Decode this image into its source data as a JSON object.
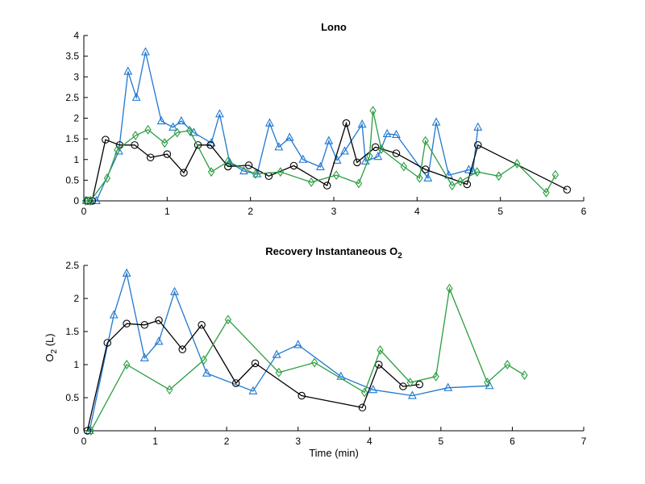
{
  "chart_data": [
    {
      "type": "line",
      "title": "Lono",
      "title_sub": "",
      "xlabel": "",
      "ylabel": "",
      "xlim": [
        0,
        6
      ],
      "ylim": [
        0,
        4
      ],
      "xticks": [
        0,
        1,
        2,
        3,
        4,
        5,
        6
      ],
      "yticks": [
        0,
        0.5,
        1,
        1.5,
        2,
        2.5,
        3,
        3.5,
        4
      ],
      "xtick_labels": [
        "0",
        "1",
        "2",
        "3",
        "4",
        "5",
        "6"
      ],
      "ytick_labels": [
        "0",
        "0.5",
        "1",
        "1.5",
        "2",
        "2.5",
        "3",
        "3.5",
        "4"
      ],
      "grid": false,
      "series": [
        {
          "marker": "triangle",
          "color": "#1f77d0",
          "x": [
            0.03,
            0.08,
            0.15,
            0.42,
            0.53,
            0.63,
            0.74,
            0.93,
            1.07,
            1.17,
            1.32,
            1.53,
            1.63,
            1.75,
            1.92,
            2.08,
            2.23,
            2.34,
            2.47,
            2.63,
            2.84,
            2.94,
            3.04,
            3.13,
            3.34,
            3.38,
            3.53,
            3.64,
            3.75,
            4.13,
            4.23,
            4.38,
            4.62,
            4.67,
            4.73
          ],
          "y": [
            0.0,
            0.0,
            0.0,
            1.2,
            3.13,
            2.5,
            3.6,
            1.93,
            1.78,
            1.93,
            1.65,
            1.4,
            2.1,
            0.93,
            0.72,
            0.65,
            1.88,
            1.3,
            1.53,
            1.0,
            0.82,
            1.45,
            0.98,
            1.2,
            1.85,
            0.96,
            1.07,
            1.62,
            1.6,
            0.55,
            1.9,
            0.62,
            0.75,
            0.72,
            1.78
          ]
        },
        {
          "marker": "circle",
          "color": "#000000",
          "x": [
            0.05,
            0.1,
            0.26,
            0.43,
            0.61,
            0.8,
            1.0,
            1.2,
            1.37,
            1.52,
            1.73,
            1.98,
            2.22,
            2.52,
            2.92,
            3.15,
            3.28,
            3.5,
            3.75,
            4.1,
            4.6,
            4.73,
            5.8
          ],
          "y": [
            0.0,
            0.0,
            1.48,
            1.35,
            1.35,
            1.05,
            1.13,
            0.68,
            1.35,
            1.35,
            0.83,
            0.86,
            0.6,
            0.85,
            0.37,
            1.88,
            0.93,
            1.3,
            1.15,
            0.76,
            0.4,
            1.35,
            0.27
          ]
        },
        {
          "marker": "diamond",
          "color": "#2a9d3f",
          "x": [
            0.02,
            0.08,
            0.28,
            0.4,
            0.62,
            0.77,
            0.97,
            1.12,
            1.27,
            1.53,
            1.73,
            2.06,
            2.36,
            2.73,
            3.03,
            3.3,
            3.43,
            3.47,
            3.57,
            3.84,
            4.03,
            4.1,
            4.42,
            4.52,
            4.72,
            4.98,
            5.2,
            5.55,
            5.66
          ],
          "y": [
            0.0,
            0.0,
            0.55,
            1.23,
            1.58,
            1.72,
            1.4,
            1.65,
            1.7,
            0.7,
            0.95,
            0.65,
            0.7,
            0.45,
            0.62,
            0.42,
            1.08,
            2.18,
            1.25,
            0.83,
            0.55,
            1.45,
            0.37,
            0.47,
            0.7,
            0.6,
            0.9,
            0.2,
            0.63
          ]
        }
      ]
    },
    {
      "type": "line",
      "title": "Recovery Instantaneous O",
      "title_sub": "2",
      "xlabel": "Time (min)",
      "ylabel": "O",
      "ylabel_sub": "2",
      "ylabel_suffix": " (L)",
      "xlim": [
        0,
        7
      ],
      "ylim": [
        0,
        2.5
      ],
      "xticks": [
        0,
        1,
        2,
        3,
        4,
        5,
        6,
        7
      ],
      "yticks": [
        0,
        0.5,
        1,
        1.5,
        2,
        2.5
      ],
      "xtick_labels": [
        "0",
        "1",
        "2",
        "3",
        "4",
        "5",
        "6",
        "7"
      ],
      "ytick_labels": [
        "0",
        "0.5",
        "1",
        "1.5",
        "2",
        "2.5"
      ],
      "grid": false,
      "series": [
        {
          "marker": "triangle",
          "color": "#1f77d0",
          "x": [
            0.08,
            0.42,
            0.6,
            0.85,
            1.05,
            1.27,
            1.72,
            2.37,
            2.7,
            3.0,
            3.6,
            4.05,
            4.6,
            5.1,
            5.68
          ],
          "y": [
            0.0,
            1.75,
            2.38,
            1.1,
            1.35,
            2.1,
            0.87,
            0.6,
            1.15,
            1.3,
            0.82,
            0.62,
            0.53,
            0.65,
            0.68
          ]
        },
        {
          "marker": "circle",
          "color": "#000000",
          "x": [
            0.05,
            0.33,
            0.6,
            0.85,
            1.05,
            1.38,
            1.65,
            2.13,
            2.4,
            3.05,
            3.9,
            4.13,
            4.47,
            4.7
          ],
          "y": [
            0.0,
            1.33,
            1.62,
            1.6,
            1.67,
            1.23,
            1.6,
            0.72,
            1.02,
            0.53,
            0.35,
            1.0,
            0.67,
            0.7
          ]
        },
        {
          "marker": "diamond",
          "color": "#2a9d3f",
          "x": [
            0.1,
            0.6,
            1.2,
            1.68,
            2.02,
            2.73,
            3.23,
            3.93,
            4.15,
            4.57,
            4.93,
            5.12,
            5.65,
            5.93,
            6.17
          ],
          "y": [
            0.0,
            1.0,
            0.62,
            1.07,
            1.68,
            0.88,
            1.03,
            0.58,
            1.22,
            0.73,
            0.82,
            2.15,
            0.73,
            1.0,
            0.84
          ]
        }
      ]
    }
  ]
}
